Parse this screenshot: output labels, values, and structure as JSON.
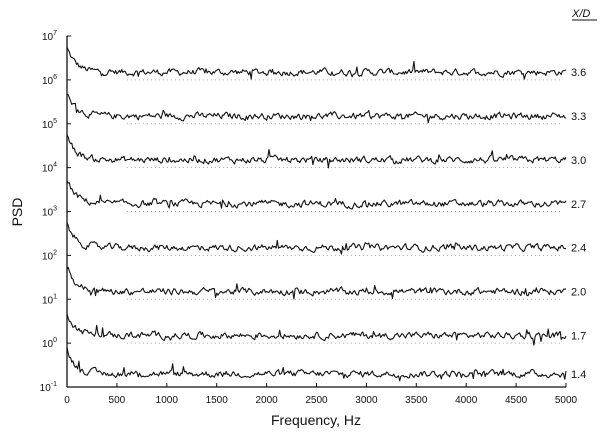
{
  "chart_data": {
    "type": "line",
    "title": "",
    "xlabel": "Frequency, Hz",
    "ylabel": "PSD",
    "xlim": [
      0,
      5000
    ],
    "ylim": [
      0.1,
      10000000
    ],
    "y_scale": "log",
    "grid": false,
    "x_ticks": [
      "0",
      "500",
      "1000",
      "1500",
      "2000",
      "2500",
      "3000",
      "3500",
      "4000",
      "4500",
      "5000"
    ],
    "y_ticks": [
      {
        "base": "10",
        "exp": "-1"
      },
      {
        "base": "10",
        "exp": "0"
      },
      {
        "base": "10",
        "exp": "1"
      },
      {
        "base": "10",
        "exp": "2"
      },
      {
        "base": "10",
        "exp": "3"
      },
      {
        "base": "10",
        "exp": "4"
      },
      {
        "base": "10",
        "exp": "5"
      },
      {
        "base": "10",
        "exp": "6"
      },
      {
        "base": "10",
        "exp": "7"
      }
    ],
    "legend_title": "X/D",
    "legend_position": "right",
    "series": [
      {
        "name": "3.6",
        "level": 1500000
      },
      {
        "name": "3.3",
        "level": 150000
      },
      {
        "name": "3.0",
        "level": 15000
      },
      {
        "name": "2.7",
        "level": 1500
      },
      {
        "name": "2.4",
        "level": 150
      },
      {
        "name": "2.0",
        "level": 15
      },
      {
        "name": "1.7",
        "level": 1.5
      },
      {
        "name": "1.4",
        "level": 0.2
      }
    ]
  }
}
